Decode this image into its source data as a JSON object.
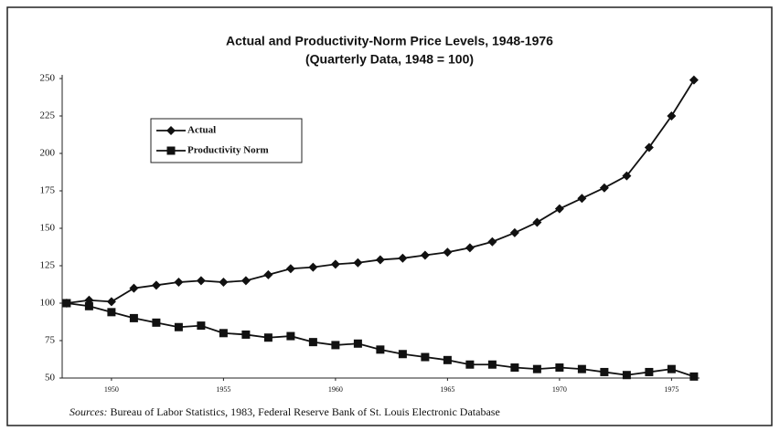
{
  "chart_data": {
    "type": "line",
    "title": "Actual and Productivity-Norm Price Levels, 1948-1976",
    "subtitle": "(Quarterly Data, 1948 = 100)",
    "x": [
      1948,
      1949,
      1950,
      1951,
      1952,
      1953,
      1954,
      1955,
      1956,
      1957,
      1958,
      1959,
      1960,
      1961,
      1962,
      1963,
      1964,
      1965,
      1966,
      1967,
      1968,
      1969,
      1970,
      1971,
      1972,
      1973,
      1974,
      1975,
      1976
    ],
    "series": [
      {
        "name": "Actual",
        "color": "#111111",
        "marker": "diamond",
        "values": [
          100,
          102,
          101,
          110,
          112,
          114,
          115,
          114,
          115,
          119,
          123,
          124,
          126,
          127,
          129,
          130,
          132,
          134,
          137,
          141,
          147,
          154,
          163,
          170,
          177,
          185,
          204,
          225,
          249
        ]
      },
      {
        "name": "Productivity Norm",
        "color": "#111111",
        "marker": "square",
        "values": [
          100,
          98,
          94,
          90,
          87,
          84,
          85,
          80,
          79,
          77,
          78,
          74,
          72,
          73,
          69,
          66,
          64,
          62,
          59,
          59,
          57,
          56,
          57,
          56,
          54,
          52,
          54,
          56,
          51
        ]
      }
    ],
    "xlim": [
      1947.8,
      1976.25
    ],
    "xticks": [
      1950,
      1955,
      1960,
      1965,
      1970,
      1975
    ],
    "ylim": [
      50,
      250
    ],
    "yticks": [
      50,
      75,
      100,
      125,
      150,
      175,
      200,
      225,
      250
    ],
    "legend": "upper left",
    "source_label": "Sources:",
    "source": "Bureau of Labor Statistics, 1983, Federal Reserve Bank of St. Louis Electronic Database"
  }
}
